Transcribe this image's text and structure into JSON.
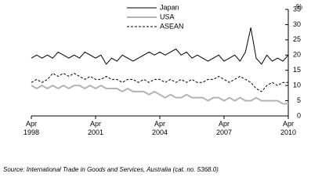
{
  "chart_data": {
    "type": "line",
    "y_label": "%",
    "source": "Source: International Trade in Goods and Services, Australia (cat. no. 5368.0)",
    "categories": [
      "Apr 1998",
      null,
      null,
      null,
      null,
      null,
      null,
      null,
      null,
      null,
      null,
      null,
      "Apr 2001",
      null,
      null,
      null,
      null,
      null,
      null,
      null,
      null,
      null,
      null,
      null,
      "Apr 2004",
      null,
      null,
      null,
      null,
      null,
      null,
      null,
      null,
      null,
      null,
      null,
      "Apr 2007",
      null,
      null,
      null,
      null,
      null,
      null,
      null,
      null,
      null,
      null,
      null,
      "Apr 2010"
    ],
    "series": [
      {
        "name": "Japan",
        "color": "#000000",
        "dash": false,
        "width": 1,
        "values": [
          19,
          20,
          19,
          20,
          19,
          21,
          20,
          19,
          20,
          19,
          21,
          20,
          19,
          20,
          17,
          19,
          18,
          20,
          19,
          18,
          19,
          20,
          21,
          20,
          21,
          20,
          21,
          22,
          20,
          21,
          19,
          20,
          19,
          18,
          19,
          20,
          18,
          19,
          20,
          18,
          21,
          29,
          19,
          17,
          20,
          18,
          19,
          18,
          20
        ]
      },
      {
        "name": "USA",
        "color": "#b3b3b3",
        "dash": false,
        "width": 2,
        "values": [
          10,
          9,
          10,
          9,
          10,
          9,
          10,
          9,
          10,
          10,
          9,
          10,
          9,
          10,
          9,
          9,
          9,
          8,
          9,
          8,
          8,
          8,
          7,
          8,
          7,
          6,
          7,
          6,
          6,
          7,
          6,
          6,
          6,
          5,
          6,
          6,
          5,
          6,
          5,
          6,
          5,
          5,
          6,
          5,
          5,
          5,
          5,
          4,
          4
        ]
      },
      {
        "name": "ASEAN",
        "color": "#000000",
        "dash": true,
        "width": 1,
        "values": [
          11,
          12,
          11,
          12,
          14,
          13,
          14,
          13,
          14,
          13,
          12,
          13,
          12,
          12,
          13,
          12,
          12,
          11,
          12,
          12,
          11,
          12,
          11,
          12,
          12,
          11,
          12,
          11,
          12,
          11,
          12,
          11,
          11,
          12,
          12,
          13,
          12,
          11,
          12,
          13,
          12,
          11,
          9,
          8,
          10,
          11,
          10,
          11,
          11
        ]
      }
    ],
    "ylim": [
      0,
      35
    ],
    "yticks": [
      0,
      5,
      10,
      15,
      20,
      25,
      30,
      35
    ],
    "y_axis_side": "right",
    "legend": "top",
    "grid": false
  }
}
